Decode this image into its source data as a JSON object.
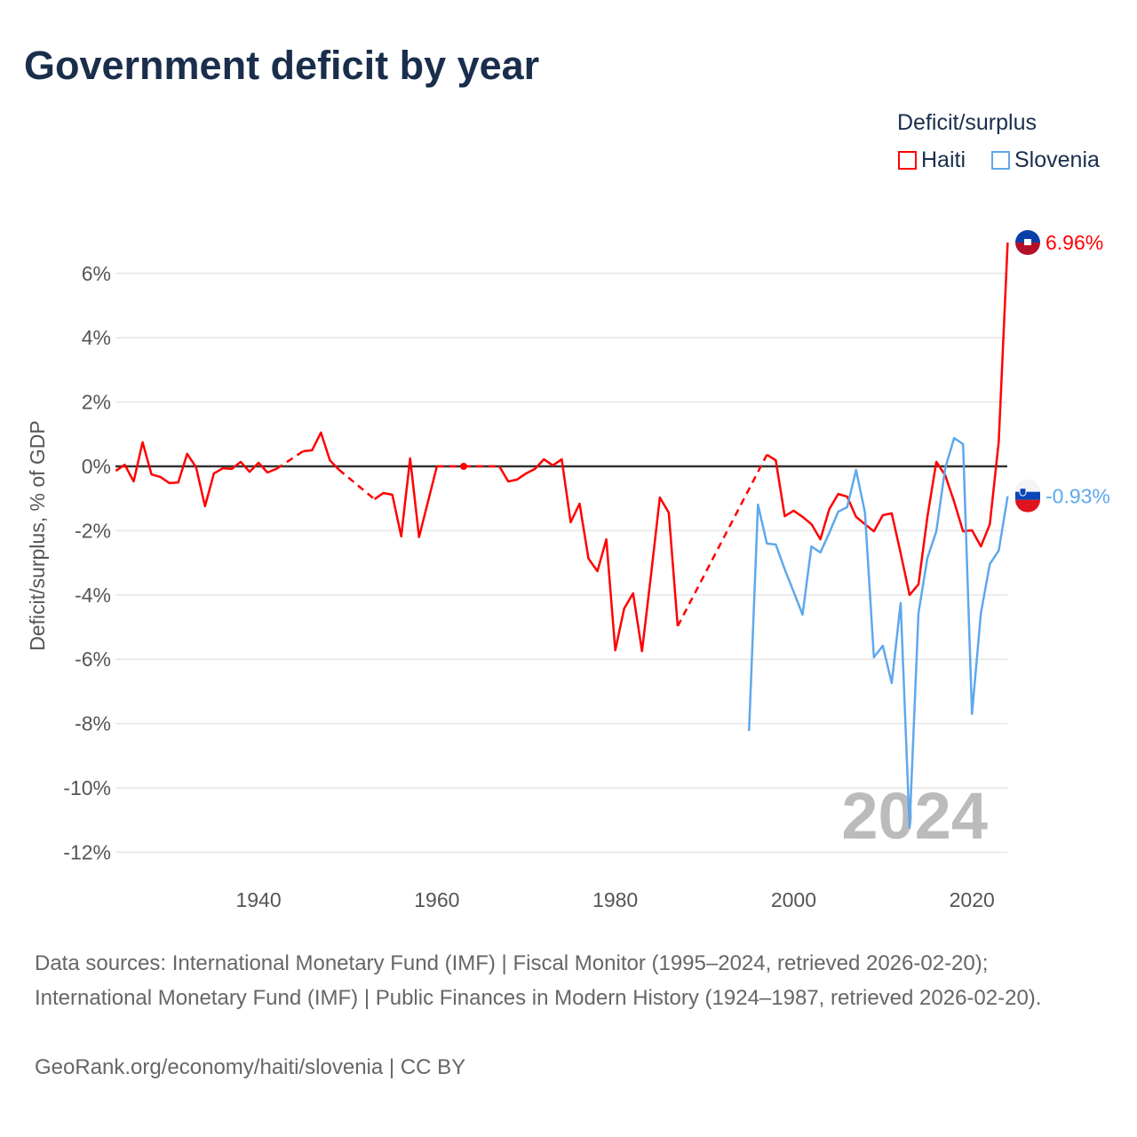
{
  "title": "Government deficit by year",
  "legend": {
    "title": "Deficit/surplus",
    "items": [
      "Haiti",
      "Slovenia"
    ]
  },
  "footer": {
    "sources": "Data sources: International Monetary Fund (IMF) | Fiscal Monitor (1995–2024, retrieved 2026-02-20); International Monetary Fund (IMF) | Public Finances in Modern History (1924–1987, retrieved 2026-02-20).",
    "credit": "GeoRank.org/economy/haiti/slovenia | CC BY"
  },
  "chart_data": {
    "type": "line",
    "title": "Government deficit by year",
    "xlabel": "",
    "ylabel": "Deficit/surplus, % of GDP",
    "xlim": [
      1924,
      2024
    ],
    "ylim": [
      -12.5,
      7.5
    ],
    "xticks": [
      1940,
      1960,
      1980,
      2000,
      2020
    ],
    "yticks": [
      6,
      4,
      2,
      0,
      -2,
      -4,
      -6,
      -8,
      -10,
      -12
    ],
    "ytick_labels": [
      "6%",
      "4%",
      "2%",
      "0%",
      "-2%",
      "-4%",
      "-6%",
      "-8%",
      "-10%",
      "-12%"
    ],
    "year_watermark": "2024",
    "grid": true,
    "legend_position": "top-right",
    "series": [
      {
        "name": "Haiti",
        "color": "#ff0000",
        "end_label": "6.96%",
        "start_year": 1924,
        "values": [
          -0.14,
          0.05,
          -0.47,
          0.75,
          -0.25,
          -0.33,
          -0.52,
          -0.5,
          0.39,
          -0.03,
          -1.24,
          -0.22,
          -0.06,
          -0.08,
          0.14,
          -0.17,
          0.11,
          -0.19,
          -0.08,
          null,
          null,
          0.47,
          0.5,
          1.05,
          0.19,
          -0.1,
          null,
          null,
          null,
          -1.02,
          -0.83,
          -0.88,
          -2.18,
          0.25,
          -2.2,
          -1.1,
          0,
          null,
          null,
          0,
          null,
          null,
          null,
          0,
          -0.47,
          -0.41,
          -0.22,
          -0.08,
          0.22,
          0.03,
          0.22,
          -1.74,
          -1.16,
          -2.87,
          -3.26,
          -2.27,
          -5.72,
          -4.42,
          -3.95,
          -5.75,
          -3.4,
          -0.97,
          -1.44,
          -4.97,
          null,
          null,
          null,
          null,
          null,
          null,
          null,
          null,
          null,
          0.36,
          0.19,
          -1.55,
          -1.38,
          -1.57,
          -1.8,
          -2.27,
          -1.33,
          -0.86,
          -0.94,
          -1.57,
          -1.8,
          -2.02,
          -1.52,
          -1.46,
          -2.7,
          -4.0,
          -3.67,
          -1.57,
          0.14,
          -0.28,
          -1.1,
          -2.02,
          -1.99,
          -2.49,
          -1.8,
          0.77,
          6.96
        ]
      },
      {
        "name": "Slovenia",
        "color": "#5ea8ec",
        "end_label": "-0.93%",
        "start_year": 1995,
        "values": [
          -8.23,
          -1.19,
          -2.4,
          -2.43,
          -3.2,
          -3.9,
          -4.61,
          -2.49,
          -2.68,
          -2.07,
          -1.41,
          -1.27,
          -0.11,
          -1.44,
          -5.94,
          -5.58,
          -6.74,
          -4.25,
          -11.24,
          -4.56,
          -2.85,
          -2.02,
          -0.05,
          0.88,
          0.69,
          -7.7,
          -4.56,
          -3.04,
          -2.62,
          -0.93
        ]
      }
    ]
  }
}
